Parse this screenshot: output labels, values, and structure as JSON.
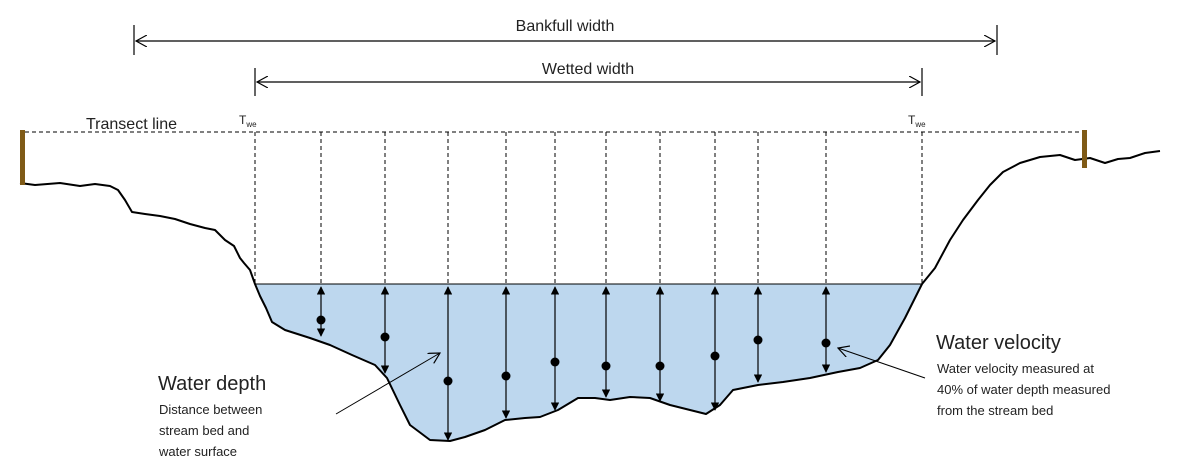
{
  "labels": {
    "bankfull_width": "Bankfull width",
    "wetted_width": "Wetted width",
    "transect_line": "Transect line",
    "twe_main": "T",
    "twe_sub": "we",
    "water_depth_title": "Water depth",
    "water_depth_desc": [
      "Distance between",
      "stream bed and",
      "water surface"
    ],
    "water_velocity_title": "Water velocity",
    "water_velocity_desc": [
      "Water velocity measured at",
      "40% of water depth measured",
      "from the stream bed"
    ]
  },
  "colors": {
    "water": "#bdd7ee",
    "stake": "#7f5a16",
    "line": "#000000",
    "text": "#222222"
  }
}
